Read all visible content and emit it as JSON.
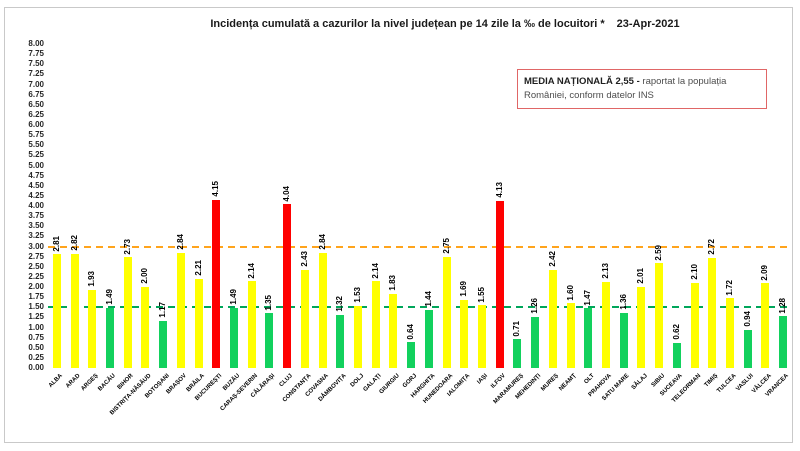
{
  "header": {
    "title_main": "Incidența cumulată a cazurilor la nivel județean pe 14 zile la ‰ de locuitori *",
    "title_date": "23-Apr-2021"
  },
  "legend_box": {
    "bold_text": "MEDIA NAȚIONALĂ  2,55 -",
    "normal_text": " raportat la populația României, conform datelor INS"
  },
  "chart_data": {
    "type": "bar",
    "title": "Incidența cumulată a cazurilor la nivel județean pe 14 zile la ‰ de locuitori * 23-Apr-2021",
    "categories": [
      "ALBA",
      "ARAD",
      "ARGEȘ",
      "BACĂU",
      "BIHOR",
      "BISTRIȚA-NĂSĂUD",
      "BOTOȘANI",
      "BRAȘOV",
      "BRĂILA",
      "BUCUREȘTI",
      "BUZĂU",
      "CARAȘ-SEVERIN",
      "CĂLĂRAȘI",
      "CLUJ",
      "CONSTANȚA",
      "COVASNA",
      "DÂMBOVIȚA",
      "DOLJ",
      "GALAȚI",
      "GIURGIU",
      "GORJ",
      "HARGHITA",
      "HUNEDOARA",
      "IALOMIȚA",
      "IAȘI",
      "ILFOV",
      "MARAMUREȘ",
      "MEHEDINȚI",
      "MUREȘ",
      "NEAMȚ",
      "OLT",
      "PRAHOVA",
      "SATU MARE",
      "SĂLAJ",
      "SIBIU",
      "SUCEAVA",
      "TELEORMAN",
      "TIMIȘ",
      "TULCEA",
      "VASLUI",
      "VÂLCEA",
      "VRANCEA"
    ],
    "values": [
      2.81,
      2.82,
      1.93,
      1.49,
      2.73,
      2.0,
      1.17,
      2.84,
      2.21,
      4.15,
      1.49,
      2.14,
      1.35,
      4.04,
      2.43,
      2.84,
      1.32,
      1.53,
      2.14,
      1.83,
      0.64,
      1.44,
      2.75,
      1.69,
      1.55,
      4.13,
      0.71,
      1.26,
      2.42,
      1.6,
      1.47,
      2.13,
      1.36,
      2.01,
      2.59,
      0.62,
      2.1,
      2.72,
      1.72,
      0.94,
      2.09,
      1.28
    ],
    "ylabel": "",
    "xlabel": "",
    "ylim": [
      0,
      8
    ],
    "y_tick_step": 0.25,
    "y_tick_format": "0.00",
    "grid": false,
    "legend_position": "none",
    "national_average": "2,55",
    "bar_color_rule": {
      "thresholds": [
        1.5,
        3.0
      ],
      "colors": [
        "#12d15d",
        "#ffff00",
        "#fe0000"
      ],
      "meaning": [
        "verde < 1.5",
        "galben 1.5–3",
        "roșu > 3"
      ]
    },
    "reference_lines": [
      {
        "value": 3.0,
        "color": "#ffa41c",
        "style": "dashed"
      },
      {
        "value": 1.5,
        "color": "#00a65a",
        "style": "dashed"
      }
    ]
  }
}
